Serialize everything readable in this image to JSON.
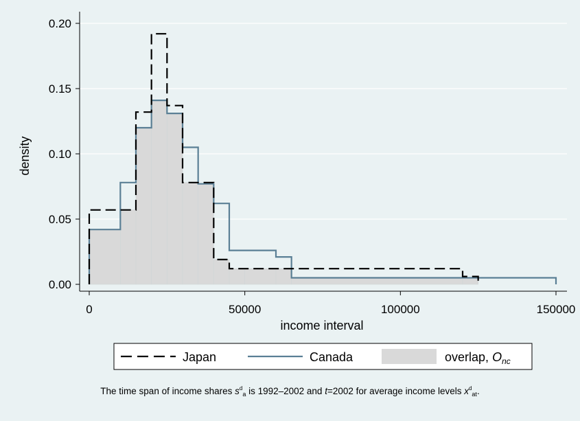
{
  "chart_data": {
    "type": "histogram",
    "xlabel": "income interval",
    "ylabel": "density",
    "xlim": [
      0,
      150000
    ],
    "ylim": [
      0,
      0.2
    ],
    "x_ticks": [
      "0",
      "50000",
      "100000",
      "150000"
    ],
    "x_tick_values": [
      0,
      50000,
      100000,
      150000
    ],
    "y_ticks": [
      "0.00",
      "0.05",
      "0.10",
      "0.15",
      "0.20"
    ],
    "y_tick_values": [
      0,
      0.05,
      0.1,
      0.15,
      0.2
    ],
    "grid": "horizontal",
    "legend_position": "bottom",
    "series": [
      {
        "name": "Japan",
        "style": "dashed",
        "color": "#000000",
        "bin_edges": [
          0,
          15000,
          20000,
          25000,
          30000,
          35000,
          40000,
          45000,
          50000,
          60000,
          65000,
          120000,
          125000
        ],
        "values": [
          0.057,
          0.132,
          0.192,
          0.137,
          0.078,
          0.078,
          0.019,
          0.012,
          0.012,
          0.012,
          0.012,
          0.006
        ]
      },
      {
        "name": "Canada",
        "style": "solid",
        "color": "#5a7f95",
        "bin_edges": [
          0,
          10000,
          15000,
          20000,
          25000,
          30000,
          35000,
          40000,
          45000,
          50000,
          60000,
          65000,
          125000,
          150000
        ],
        "values": [
          0.042,
          0.078,
          0.12,
          0.141,
          0.131,
          0.105,
          0.077,
          0.062,
          0.026,
          0.026,
          0.021,
          0.005,
          0.005
        ]
      }
    ],
    "overlap": {
      "name": "overlap,",
      "name_symbol": "O",
      "name_subscript": "nc",
      "color": "#d9d9d9"
    }
  },
  "caption": {
    "part1": "The time span of income shares ",
    "s_var": "s",
    "s_sup": "d",
    "s_sub": "a",
    "part2": " is 1992–2002 and ",
    "t_var": "t",
    "part3": "=2002 for average income levels ",
    "x_var": "x",
    "x_sup": "d",
    "x_sub": "at",
    "part4": "."
  }
}
